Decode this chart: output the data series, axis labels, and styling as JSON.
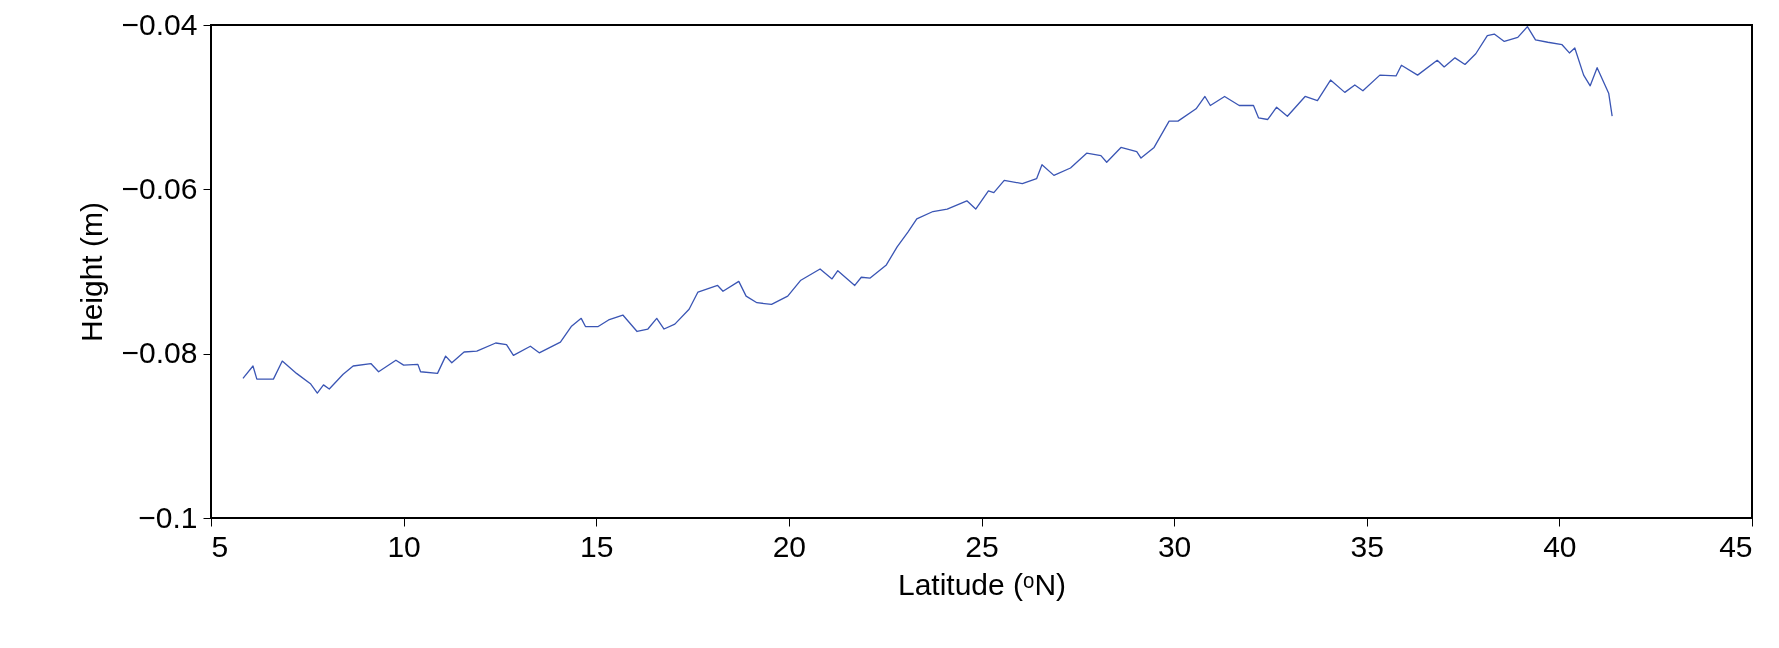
{
  "chart_data": {
    "type": "line",
    "xlabel": "Latitude (ᵒN)",
    "ylabel": "Height (m)",
    "xlim": [
      5,
      45
    ],
    "xticks": [
      5,
      10,
      15,
      20,
      25,
      30,
      35,
      40,
      45
    ],
    "ylim": [
      -0.1,
      -0.04
    ],
    "yticks": [
      {
        "value": -0.1,
        "label": "−0.1"
      },
      {
        "value": -0.08,
        "label": "−0.08"
      },
      {
        "value": -0.06,
        "label": "−0.06"
      },
      {
        "value": -0.04,
        "label": "−0.04"
      }
    ],
    "grid": false,
    "legend": false,
    "marker": "none",
    "line_style": "solid",
    "series": [
      {
        "color": "#3a55b4",
        "x": [
          5.83,
          6.09,
          6.19,
          6.37,
          6.62,
          6.85,
          7.22,
          7.59,
          7.76,
          7.92,
          8.07,
          8.43,
          8.69,
          9.15,
          9.35,
          9.8,
          10.0,
          10.37,
          10.44,
          10.88,
          11.09,
          11.25,
          11.57,
          11.9,
          12.39,
          12.67,
          12.85,
          13.29,
          13.52,
          14.07,
          14.35,
          14.61,
          14.72,
          15.05,
          15.32,
          15.69,
          16.06,
          16.34,
          16.57,
          16.76,
          17.04,
          17.41,
          17.64,
          18.15,
          18.29,
          18.7,
          18.89,
          19.17,
          19.55,
          19.97,
          20.3,
          20.81,
          21.12,
          21.27,
          21.71,
          21.88,
          22.11,
          22.53,
          22.81,
          23.09,
          23.32,
          23.74,
          24.11,
          24.62,
          24.85,
          25.18,
          25.32,
          25.59,
          26.06,
          26.43,
          26.57,
          26.88,
          27.31,
          27.73,
          28.1,
          28.25,
          28.62,
          29.03,
          29.14,
          29.48,
          29.87,
          30.1,
          30.57,
          30.8,
          30.94,
          31.31,
          31.69,
          32.06,
          32.19,
          32.43,
          32.66,
          32.94,
          33.4,
          33.72,
          34.06,
          34.43,
          34.69,
          34.9,
          35.34,
          35.76,
          35.9,
          36.32,
          36.83,
          37.01,
          37.29,
          37.55,
          37.83,
          38.13,
          38.31,
          38.57,
          38.92,
          39.17,
          39.38,
          39.7,
          40.07,
          40.26,
          40.4,
          40.63,
          40.8,
          40.98,
          41.28,
          41.37
        ],
        "values": [
          -0.083,
          -0.0815,
          -0.0831,
          -0.0831,
          -0.0831,
          -0.0809,
          -0.0824,
          -0.0837,
          -0.0848,
          -0.0838,
          -0.0843,
          -0.0825,
          -0.0815,
          -0.0812,
          -0.0822,
          -0.0808,
          -0.0814,
          -0.0813,
          -0.0822,
          -0.0824,
          -0.0803,
          -0.0811,
          -0.0798,
          -0.0797,
          -0.0787,
          -0.0789,
          -0.0802,
          -0.0791,
          -0.0799,
          -0.0786,
          -0.0767,
          -0.0757,
          -0.0767,
          -0.0767,
          -0.0759,
          -0.0753,
          -0.0773,
          -0.077,
          -0.0757,
          -0.077,
          -0.0764,
          -0.0746,
          -0.0725,
          -0.0717,
          -0.0724,
          -0.0712,
          -0.073,
          -0.0738,
          -0.074,
          -0.073,
          -0.0711,
          -0.0697,
          -0.0709,
          -0.0699,
          -0.0717,
          -0.0707,
          -0.0708,
          -0.0692,
          -0.067,
          -0.0652,
          -0.0636,
          -0.0627,
          -0.0624,
          -0.0614,
          -0.0624,
          -0.0602,
          -0.0604,
          -0.0589,
          -0.0593,
          -0.0587,
          -0.057,
          -0.0583,
          -0.0574,
          -0.0556,
          -0.0559,
          -0.0567,
          -0.0549,
          -0.0554,
          -0.0562,
          -0.0549,
          -0.0517,
          -0.0517,
          -0.0502,
          -0.0487,
          -0.0498,
          -0.0487,
          -0.0498,
          -0.0498,
          -0.0513,
          -0.0515,
          -0.05,
          -0.0511,
          -0.0487,
          -0.0492,
          -0.0467,
          -0.0482,
          -0.0473,
          -0.048,
          -0.0461,
          -0.0462,
          -0.0449,
          -0.0461,
          -0.0443,
          -0.0451,
          -0.044,
          -0.0448,
          -0.0435,
          -0.0413,
          -0.0411,
          -0.042,
          -0.0415,
          -0.0402,
          -0.0418,
          -0.0421,
          -0.0424,
          -0.0434,
          -0.0428,
          -0.0461,
          -0.0474,
          -0.0452,
          -0.0483,
          -0.0511
        ]
      }
    ]
  }
}
